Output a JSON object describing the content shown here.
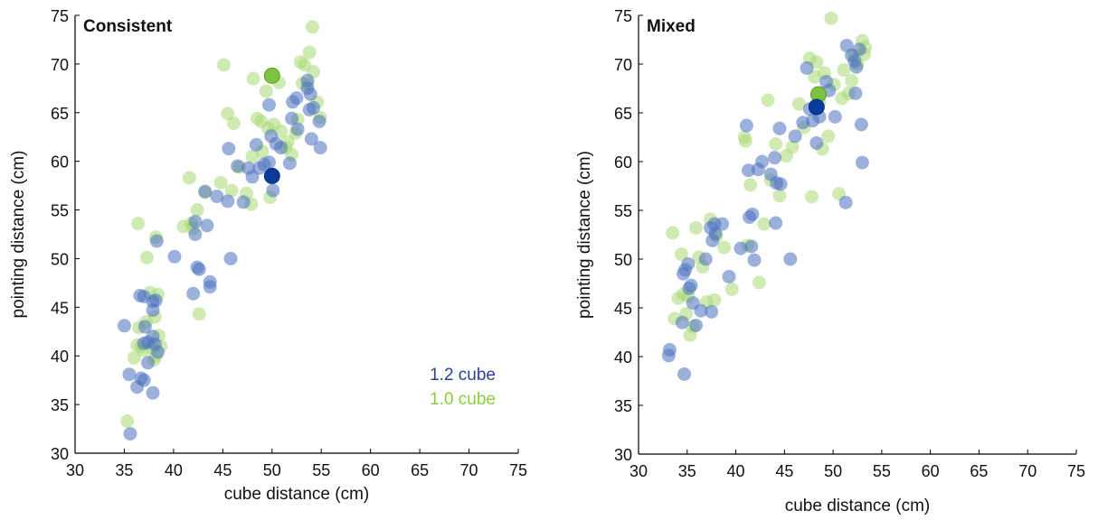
{
  "chart_data": [
    {
      "type": "scatter",
      "title": "Consistent",
      "xlabel": "cube distance (cm)",
      "ylabel": "pointing distance (cm)",
      "xlim": [
        30,
        75
      ],
      "ylim": [
        30,
        75
      ],
      "xticks": [
        "30",
        "35",
        "40",
        "45",
        "50",
        "55",
        "60",
        "65",
        "70",
        "75"
      ],
      "yticks": [
        "30",
        "35",
        "40",
        "45",
        "50",
        "55",
        "60",
        "65",
        "70",
        "75"
      ],
      "legend": {
        "placement": "bottom-right",
        "items": [
          {
            "label": "1.2 cube",
            "color": "#2a3f9c"
          },
          {
            "label": "1.0 cube",
            "color": "#8ccc3c"
          }
        ]
      },
      "series": [
        {
          "name": "1.2 cube",
          "color": "#4a70bf",
          "mean_color": "#0a3a9a",
          "mean": [
            50.0,
            58.5
          ],
          "points": [
            [
              35,
              43.1
            ],
            [
              35.5,
              38.1
            ],
            [
              35.6,
              32
            ],
            [
              36.3,
              36.8
            ],
            [
              36.7,
              37.7
            ],
            [
              37.0,
              37.5
            ],
            [
              37.4,
              39.3
            ],
            [
              37.9,
              36.2
            ],
            [
              36.6,
              46.2
            ],
            [
              37.0,
              46.1
            ],
            [
              37.4,
              41.4
            ],
            [
              37.0,
              41.3
            ],
            [
              37.1,
              43.0
            ],
            [
              37.9,
              42.0
            ],
            [
              38.1,
              41.2
            ],
            [
              38.4,
              40.4
            ],
            [
              38.2,
              45.7
            ],
            [
              37.9,
              44.7
            ],
            [
              37.9,
              45.6
            ],
            [
              38.3,
              51.8
            ],
            [
              40.1,
              50.2
            ],
            [
              42.0,
              46.4
            ],
            [
              42.2,
              52.5
            ],
            [
              42.2,
              53.8
            ],
            [
              42.4,
              49.1
            ],
            [
              42.6,
              48.9
            ],
            [
              43.2,
              56.9
            ],
            [
              43.4,
              53.4
            ],
            [
              43.7,
              47.6
            ],
            [
              43.7,
              47.1
            ],
            [
              44.4,
              56.4
            ],
            [
              45.5,
              55.9
            ],
            [
              45.6,
              61.3
            ],
            [
              45.8,
              50.0
            ],
            [
              46.5,
              59.5
            ],
            [
              47.1,
              55.8
            ],
            [
              47.6,
              59.3
            ],
            [
              48.0,
              58.4
            ],
            [
              48.4,
              61.7
            ],
            [
              48.7,
              59.3
            ],
            [
              49.2,
              59.7
            ],
            [
              49.7,
              65.8
            ],
            [
              49.9,
              62.6
            ],
            [
              49.7,
              59.9
            ],
            [
              50.1,
              57.0
            ],
            [
              50.4,
              61.8
            ],
            [
              50.9,
              61.4
            ],
            [
              51.8,
              59.8
            ],
            [
              52.0,
              64.4
            ],
            [
              52.1,
              66.1
            ],
            [
              52.5,
              66.5
            ],
            [
              52.6,
              63.3
            ],
            [
              53.6,
              67.5
            ],
            [
              53.6,
              68.3
            ],
            [
              53.9,
              66.9
            ],
            [
              54.0,
              62.3
            ],
            [
              54.2,
              65.5
            ],
            [
              54.8,
              64.1
            ],
            [
              54.9,
              61.4
            ],
            [
              53.8,
              65.3
            ]
          ]
        },
        {
          "name": "1.0 cube",
          "color": "#a8d872",
          "mean_color": "#7fc241",
          "mean": [
            50.0,
            68.8
          ],
          "points": [
            [
              35.3,
              33.3
            ],
            [
              36.4,
              53.6
            ],
            [
              36.0,
              39.8
            ],
            [
              36.3,
              41.1
            ],
            [
              36.5,
              42.9
            ],
            [
              36.7,
              41.0
            ],
            [
              36.9,
              40.6
            ],
            [
              37.2,
              43.5
            ],
            [
              37.3,
              50.1
            ],
            [
              37.6,
              46.5
            ],
            [
              37.8,
              40.8
            ],
            [
              38.1,
              44.0
            ],
            [
              38.2,
              40.0
            ],
            [
              38.4,
              46.3
            ],
            [
              38.5,
              42.1
            ],
            [
              38.7,
              41.0
            ],
            [
              38.2,
              52.2
            ],
            [
              38.0,
              39.6
            ],
            [
              41.0,
              53.3
            ],
            [
              41.6,
              58.3
            ],
            [
              41.8,
              53.6
            ],
            [
              42.0,
              53.1
            ],
            [
              42.4,
              55.0
            ],
            [
              42.6,
              44.3
            ],
            [
              43.2,
              56.8
            ],
            [
              44.8,
              57.8
            ],
            [
              45.1,
              69.9
            ],
            [
              45.5,
              64.9
            ],
            [
              45.9,
              57.0
            ],
            [
              46.1,
              63.9
            ],
            [
              46.7,
              59.4
            ],
            [
              47.4,
              56.7
            ],
            [
              47.9,
              55.6
            ],
            [
              48.0,
              60.5
            ],
            [
              48.1,
              68.5
            ],
            [
              48.5,
              64.4
            ],
            [
              48.9,
              64.1
            ],
            [
              49.0,
              61.0
            ],
            [
              49.4,
              67.2
            ],
            [
              49.6,
              63.4
            ],
            [
              49.8,
              56.3
            ],
            [
              50.2,
              63.8
            ],
            [
              50.7,
              68.1
            ],
            [
              50.9,
              63.1
            ],
            [
              51.4,
              61.4
            ],
            [
              51.6,
              62.0
            ],
            [
              52.0,
              60.7
            ],
            [
              52.4,
              62.9
            ],
            [
              52.6,
              64.3
            ],
            [
              52.9,
              70.2
            ],
            [
              53.1,
              68.0
            ],
            [
              53.3,
              69.9
            ],
            [
              53.6,
              67.9
            ],
            [
              53.8,
              71.2
            ],
            [
              54.1,
              73.8
            ],
            [
              54.2,
              69.2
            ],
            [
              54.6,
              66.1
            ],
            [
              54.9,
              64.5
            ]
          ]
        }
      ]
    },
    {
      "type": "scatter",
      "title": "Mixed",
      "xlabel": "cube distance (cm)",
      "ylabel": "pointing distance (cm)",
      "xlim": [
        30,
        75
      ],
      "ylim": [
        30,
        75
      ],
      "xticks": [
        "30",
        "35",
        "40",
        "45",
        "50",
        "55",
        "60",
        "65",
        "70",
        "75"
      ],
      "yticks": [
        "30",
        "35",
        "40",
        "45",
        "50",
        "55",
        "60",
        "65",
        "70",
        "75"
      ],
      "series": [
        {
          "name": "1.2 cube",
          "color": "#4a70bf",
          "mean_color": "#0a3a9a",
          "mean": [
            48.3,
            65.6
          ],
          "points": [
            [
              33.1,
              40.1
            ],
            [
              33.2,
              40.7
            ],
            [
              34.7,
              38.2
            ],
            [
              34.5,
              43.5
            ],
            [
              34.6,
              48.5
            ],
            [
              34.8,
              48.9
            ],
            [
              35.1,
              49.5
            ],
            [
              35.2,
              47.0
            ],
            [
              35.4,
              47.3
            ],
            [
              35.6,
              45.5
            ],
            [
              35.9,
              43.2
            ],
            [
              36.4,
              44.7
            ],
            [
              36.9,
              50.0
            ],
            [
              37.4,
              53.2
            ],
            [
              37.6,
              51.9
            ],
            [
              37.5,
              44.6
            ],
            [
              37.8,
              53.6
            ],
            [
              37.9,
              52.6
            ],
            [
              38.6,
              53.6
            ],
            [
              39.3,
              48.2
            ],
            [
              40.5,
              51.1
            ],
            [
              41.1,
              63.7
            ],
            [
              41.3,
              59.1
            ],
            [
              41.4,
              54.3
            ],
            [
              41.7,
              54.6
            ],
            [
              41.6,
              51.3
            ],
            [
              41.9,
              49.9
            ],
            [
              42.3,
              59.2
            ],
            [
              42.7,
              60.0
            ],
            [
              43.6,
              58.7
            ],
            [
              44.0,
              60.4
            ],
            [
              44.1,
              53.7
            ],
            [
              44.2,
              57.8
            ],
            [
              44.5,
              63.4
            ],
            [
              44.6,
              57.7
            ],
            [
              45.6,
              50.0
            ],
            [
              46.1,
              62.6
            ],
            [
              46.9,
              64.0
            ],
            [
              47.3,
              69.6
            ],
            [
              47.6,
              65.4
            ],
            [
              47.9,
              64.2
            ],
            [
              48.3,
              61.9
            ],
            [
              48.6,
              64.6
            ],
            [
              49.3,
              68.2
            ],
            [
              49.6,
              67.3
            ],
            [
              50.2,
              64.6
            ],
            [
              51.3,
              55.8
            ],
            [
              51.4,
              71.9
            ],
            [
              51.9,
              70.9
            ],
            [
              52.2,
              70.3
            ],
            [
              52.3,
              67.0
            ],
            [
              52.4,
              69.7
            ],
            [
              52.7,
              71.5
            ],
            [
              52.9,
              63.8
            ],
            [
              53.0,
              59.9
            ]
          ]
        },
        {
          "name": "1.0 cube",
          "color": "#a8d872",
          "mean_color": "#7fc241",
          "mean": [
            48.5,
            66.9
          ],
          "points": [
            [
              33.5,
              52.7
            ],
            [
              33.7,
              43.9
            ],
            [
              34.1,
              46.0
            ],
            [
              34.4,
              50.5
            ],
            [
              34.6,
              46.4
            ],
            [
              34.9,
              44.4
            ],
            [
              35.1,
              46.2
            ],
            [
              35.3,
              42.2
            ],
            [
              35.6,
              43.1
            ],
            [
              35.9,
              53.2
            ],
            [
              36.2,
              50.2
            ],
            [
              36.6,
              49.2
            ],
            [
              37.0,
              45.6
            ],
            [
              37.4,
              54.1
            ],
            [
              37.8,
              45.8
            ],
            [
              38.0,
              52.4
            ],
            [
              38.8,
              51.2
            ],
            [
              39.6,
              46.9
            ],
            [
              40.9,
              62.5
            ],
            [
              41.0,
              62.1
            ],
            [
              41.2,
              51.4
            ],
            [
              41.5,
              57.6
            ],
            [
              42.4,
              47.6
            ],
            [
              42.9,
              53.6
            ],
            [
              43.3,
              66.3
            ],
            [
              43.6,
              58.1
            ],
            [
              44.1,
              61.8
            ],
            [
              44.5,
              56.5
            ],
            [
              45.2,
              60.6
            ],
            [
              45.8,
              61.5
            ],
            [
              46.5,
              65.9
            ],
            [
              47.0,
              63.5
            ],
            [
              47.6,
              70.6
            ],
            [
              47.8,
              56.4
            ],
            [
              48.1,
              68.7
            ],
            [
              48.3,
              70.2
            ],
            [
              48.6,
              66.1
            ],
            [
              48.9,
              61.3
            ],
            [
              49.1,
              69.1
            ],
            [
              49.5,
              62.6
            ],
            [
              49.8,
              74.7
            ],
            [
              50.1,
              67.9
            ],
            [
              50.6,
              56.7
            ],
            [
              50.9,
              66.5
            ],
            [
              51.1,
              69.4
            ],
            [
              51.6,
              67.0
            ],
            [
              51.9,
              68.3
            ],
            [
              52.2,
              70.9
            ],
            [
              52.5,
              70.0
            ],
            [
              53.0,
              72.4
            ],
            [
              53.2,
              71.0
            ],
            [
              53.3,
              71.7
            ]
          ]
        }
      ]
    }
  ]
}
